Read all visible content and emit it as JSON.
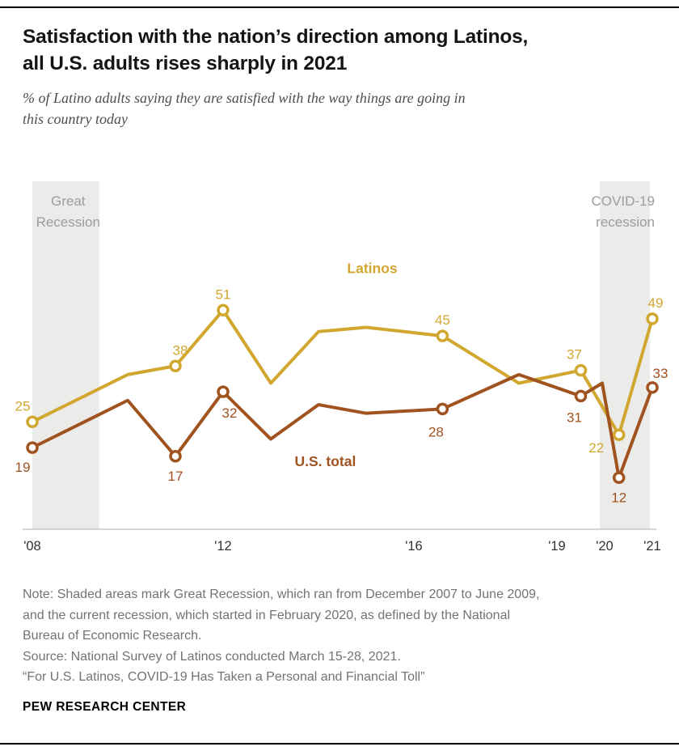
{
  "header": {
    "title_lines": [
      "Satisfaction with the nation’s direction among Latinos,",
      "all U.S. adults rises sharply in 2021"
    ],
    "subtitle_lines": [
      "% of Latino adults saying they are satisfied with the way things are going in",
      "this country today"
    ]
  },
  "chart_data": {
    "type": "line",
    "x_range": [
      2008,
      2021
    ],
    "ylim": [
      0,
      81
    ],
    "grid": false,
    "colors": {
      "band": "#ebebe9",
      "annotation": "#9c9c9c",
      "axis": "#c8c8c8",
      "tick_label": "#333333"
    },
    "x_ticks": [
      {
        "year": 2008,
        "label": "'08"
      },
      {
        "year": 2012,
        "label": "'12"
      },
      {
        "year": 2016,
        "label": "'16"
      },
      {
        "year": 2019,
        "label": "'19"
      },
      {
        "year": 2020,
        "label": "'20"
      },
      {
        "year": 2021,
        "label": "'21"
      }
    ],
    "recessions": [
      {
        "name": "Great Recession",
        "label_lines": [
          "Great",
          "Recession"
        ],
        "start": 2008.0,
        "end": 2009.4,
        "label_anchor": "middle",
        "label_x": 2008.75
      },
      {
        "name": "COVID-19 recession",
        "label_lines": [
          "COVID-19",
          "recession"
        ],
        "start": 2019.9,
        "end": 2020.95,
        "label_anchor": "end",
        "label_x": 2021.05
      }
    ],
    "series": [
      {
        "name": "Latinos",
        "color": "#d1a730",
        "label": {
          "text": "Latinos",
          "year": 2014.6,
          "value": 59.6,
          "anchor": "start"
        },
        "points": [
          {
            "year": 2008,
            "value": 25,
            "label": "25",
            "label_offset": [
              -12,
              -14
            ]
          },
          {
            "year": 2010,
            "value": 36
          },
          {
            "year": 2011,
            "value": 38,
            "label": "38",
            "label_offset": [
              6,
              -14
            ]
          },
          {
            "year": 2012,
            "value": 51,
            "label": "51",
            "label_offset": [
              0,
              -14
            ]
          },
          {
            "year": 2013,
            "value": 34
          },
          {
            "year": 2014,
            "value": 46
          },
          {
            "year": 2015,
            "value": 47
          },
          {
            "year": 2016.6,
            "value": 45,
            "label": "45",
            "label_offset": [
              0,
              -14
            ]
          },
          {
            "year": 2018.2,
            "value": 34
          },
          {
            "year": 2019.5,
            "value": 37,
            "label": "37",
            "label_offset": [
              -8,
              -14
            ]
          },
          {
            "year": 2020.3,
            "value": 22,
            "label": "22",
            "label_offset": [
              -28,
              22
            ]
          },
          {
            "year": 2021,
            "value": 49,
            "label": "49",
            "label_offset": [
              4,
              -14
            ]
          }
        ]
      },
      {
        "name": "U.S. total",
        "color": "#a0521f",
        "label": {
          "text": "U.S. total",
          "year": 2013.5,
          "value": 14.7,
          "anchor": "start"
        },
        "points": [
          {
            "year": 2008,
            "value": 19,
            "label": "19",
            "label_offset": [
              -12,
              30
            ]
          },
          {
            "year": 2010,
            "value": 30
          },
          {
            "year": 2011,
            "value": 17,
            "label": "17",
            "label_offset": [
              0,
              30
            ]
          },
          {
            "year": 2012,
            "value": 32,
            "label": "32",
            "label_offset": [
              8,
              32
            ]
          },
          {
            "year": 2013,
            "value": 21
          },
          {
            "year": 2014,
            "value": 29
          },
          {
            "year": 2015,
            "value": 27
          },
          {
            "year": 2016.6,
            "value": 28,
            "label": "28",
            "label_offset": [
              -8,
              34
            ]
          },
          {
            "year": 2018.2,
            "value": 36
          },
          {
            "year": 2019.5,
            "value": 31,
            "label": "31",
            "label_offset": [
              -8,
              32
            ]
          },
          {
            "year": 2019.95,
            "value": 34
          },
          {
            "year": 2020.3,
            "value": 12,
            "label": "12",
            "label_offset": [
              0,
              30
            ]
          },
          {
            "year": 2021,
            "value": 33,
            "label": "33",
            "label_offset": [
              10,
              -12
            ]
          }
        ]
      }
    ]
  },
  "notes": {
    "note_lines": [
      "Note: Shaded areas mark Great Recession, which ran from December 2007 to June 2009,",
      "and the current recession, which started in February 2020, as defined by the National",
      "Bureau of Economic Research."
    ],
    "source": "Source: National Survey of Latinos conducted March 15-28, 2021.",
    "quote": "“For U.S. Latinos, COVID-19 Has Taken a Personal and Financial Toll”"
  },
  "footer": {
    "brand": "PEW RESEARCH CENTER"
  }
}
